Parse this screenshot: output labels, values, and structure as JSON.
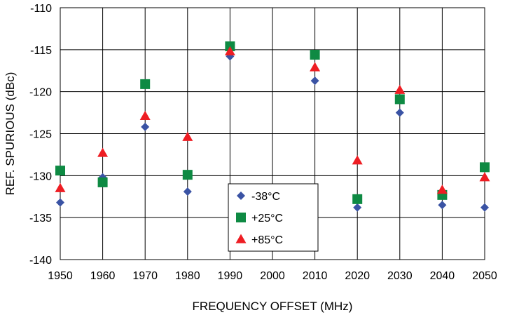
{
  "chart_data": {
    "type": "scatter",
    "title": "",
    "xlabel": "FREQUENCY OFFSET (MHz)",
    "ylabel": "REF. SPURIOUS (dBc)",
    "xlim": [
      1950,
      2050
    ],
    "ylim": [
      -140,
      -110
    ],
    "x_ticks": [
      1950,
      1960,
      1970,
      1980,
      1990,
      2000,
      2010,
      2020,
      2030,
      2040,
      2050
    ],
    "y_ticks": [
      -140,
      -135,
      -130,
      -125,
      -120,
      -115,
      -110
    ],
    "grid": true,
    "legend_position": "bottom-center",
    "series": [
      {
        "name": "-38°C",
        "marker": "diamond",
        "color": "#3A53A4",
        "points": [
          {
            "x": 1950,
            "y": -133.2
          },
          {
            "x": 1960,
            "y": -130.2
          },
          {
            "x": 1970,
            "y": -124.2
          },
          {
            "x": 1980,
            "y": -131.9
          },
          {
            "x": 1990,
            "y": -115.8
          },
          {
            "x": 2010,
            "y": -118.7
          },
          {
            "x": 2020,
            "y": -133.8
          },
          {
            "x": 2030,
            "y": -122.5
          },
          {
            "x": 2040,
            "y": -133.5
          },
          {
            "x": 2050,
            "y": -133.8
          }
        ]
      },
      {
        "name": "+25°C",
        "marker": "square",
        "color": "#0E8A43",
        "points": [
          {
            "x": 1950,
            "y": -129.4
          },
          {
            "x": 1960,
            "y": -130.8
          },
          {
            "x": 1970,
            "y": -119.1
          },
          {
            "x": 1980,
            "y": -129.9
          },
          {
            "x": 1990,
            "y": -114.6
          },
          {
            "x": 2010,
            "y": -115.6
          },
          {
            "x": 2020,
            "y": -132.8
          },
          {
            "x": 2030,
            "y": -120.9
          },
          {
            "x": 2040,
            "y": -132.3
          },
          {
            "x": 2050,
            "y": -129.0
          }
        ]
      },
      {
        "name": "+85°C",
        "marker": "triangle",
        "color": "#EE1D23",
        "points": [
          {
            "x": 1950,
            "y": -131.5
          },
          {
            "x": 1960,
            "y": -127.3
          },
          {
            "x": 1970,
            "y": -122.9
          },
          {
            "x": 1980,
            "y": -125.4
          },
          {
            "x": 1990,
            "y": -115.2
          },
          {
            "x": 2010,
            "y": -117.1
          },
          {
            "x": 2020,
            "y": -128.2
          },
          {
            "x": 2030,
            "y": -119.8
          },
          {
            "x": 2040,
            "y": -131.7
          },
          {
            "x": 2050,
            "y": -130.2
          }
        ]
      }
    ]
  }
}
